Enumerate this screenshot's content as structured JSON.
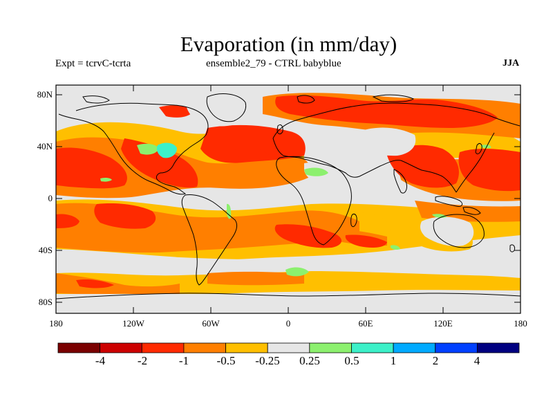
{
  "title": "Evaporation (in mm/day)",
  "subtitle_left": "Expt = tcrvC-tcrta",
  "subtitle_center": "ensemble2_79 - CTRL babyblue",
  "season": "JJA",
  "lat_labels": [
    "80N",
    "40N",
    "0",
    "40S",
    "80S"
  ],
  "lon_labels": [
    "180",
    "120W",
    "60W",
    "0",
    "60E",
    "120E",
    "180"
  ],
  "colorbar": {
    "colors": [
      "#7a0000",
      "#cc0000",
      "#ff2a00",
      "#ff7f00",
      "#ffbf00",
      "#e6e6e6",
      "#8cf06e",
      "#3cf0c8",
      "#00aaff",
      "#0040ff",
      "#000080"
    ],
    "labels": [
      "-4",
      "-2",
      "-1",
      "-0.5",
      "-0.25",
      "0.25",
      "0.5",
      "1",
      "2",
      "4"
    ]
  },
  "colors": {
    "background_ocean": "#e6e6e6",
    "strong_negative": "#ff2a00",
    "negative": "#ff7f00",
    "weak_negative": "#ffbf00",
    "weak_positive": "#8cf06e",
    "positive": "#3cf0c8"
  }
}
